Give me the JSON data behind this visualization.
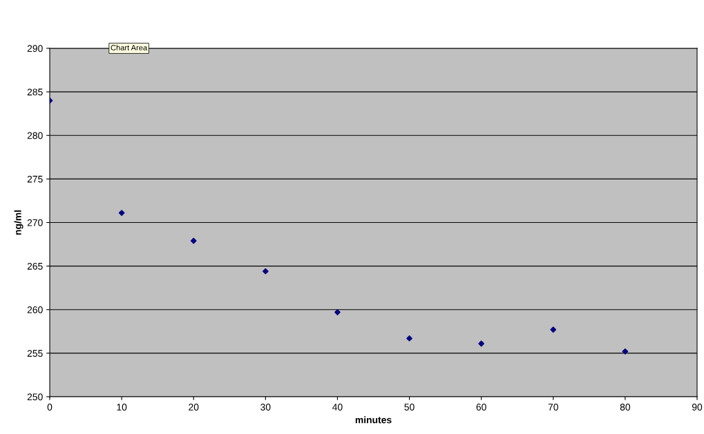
{
  "chart_data": {
    "type": "scatter",
    "xlabel": "minutes",
    "ylabel": "ng/ml",
    "annotations": [
      "Chart Area"
    ],
    "x": [
      0,
      10,
      20,
      30,
      40,
      50,
      60,
      70,
      80
    ],
    "series": [
      {
        "color": "#000080",
        "values": [
          284.0,
          271.1,
          267.9,
          264.4,
          259.7,
          256.7,
          256.1,
          257.7,
          255.2
        ]
      }
    ],
    "xlim": [
      0,
      90
    ],
    "xticks": [
      0,
      10,
      20,
      30,
      40,
      50,
      60,
      70,
      80,
      90
    ],
    "ylim": [
      250,
      290
    ],
    "yticks": [
      250,
      255,
      260,
      265,
      270,
      275,
      280,
      285,
      290
    ],
    "grid": "y",
    "marker": "diamond",
    "legend": false
  }
}
